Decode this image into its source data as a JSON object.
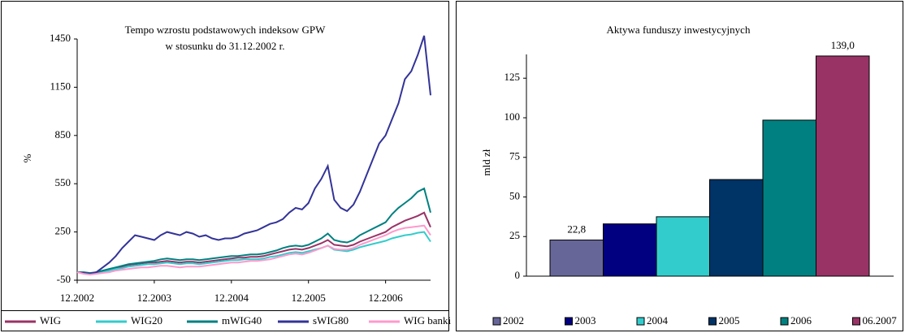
{
  "chart_data": [
    {
      "type": "line",
      "title": "Tempo wzrostu podstawowych indeksow GPW",
      "subtitle": "w stosunku do 31.12.2002 r.",
      "y_label": "%",
      "x": [
        "12.2002",
        "01.2003",
        "02.2003",
        "03.2003",
        "04.2003",
        "05.2003",
        "06.2003",
        "07.2003",
        "08.2003",
        "09.2003",
        "10.2003",
        "11.2003",
        "12.2003",
        "01.2004",
        "02.2004",
        "03.2004",
        "04.2004",
        "05.2004",
        "06.2004",
        "07.2004",
        "08.2004",
        "09.2004",
        "10.2004",
        "11.2004",
        "12.2004",
        "01.2005",
        "02.2005",
        "03.2005",
        "04.2005",
        "05.2005",
        "06.2005",
        "07.2005",
        "08.2005",
        "09.2005",
        "10.2005",
        "11.2005",
        "12.2005",
        "01.2006",
        "02.2006",
        "03.2006",
        "04.2006",
        "05.2006",
        "06.2006",
        "07.2006",
        "08.2006",
        "09.2006",
        "10.2006",
        "11.2006",
        "12.2006",
        "01.2007",
        "02.2007",
        "03.2007",
        "04.2007",
        "05.2007",
        "06.2007",
        "07.2007"
      ],
      "xticks": [
        "12.2002",
        "12.2003",
        "12.2004",
        "12.2005",
        "12.2006"
      ],
      "ylim": [
        -50,
        1450
      ],
      "yticks": [
        -50,
        250,
        550,
        850,
        1150,
        1450
      ],
      "grid": false,
      "series": [
        {
          "name": "WIG",
          "color": "#993366",
          "values": [
            0,
            -5,
            -10,
            -5,
            5,
            15,
            25,
            35,
            45,
            50,
            55,
            60,
            60,
            65,
            70,
            65,
            60,
            65,
            65,
            60,
            65,
            70,
            75,
            80,
            85,
            90,
            90,
            95,
            95,
            100,
            110,
            120,
            130,
            140,
            145,
            140,
            150,
            165,
            180,
            200,
            170,
            165,
            160,
            170,
            190,
            205,
            220,
            235,
            250,
            280,
            300,
            320,
            335,
            350,
            370,
            280
          ]
        },
        {
          "name": "WIG20",
          "color": "#33cccc",
          "values": [
            0,
            -5,
            -10,
            -5,
            0,
            10,
            20,
            25,
            35,
            40,
            45,
            50,
            50,
            55,
            60,
            55,
            50,
            55,
            55,
            50,
            55,
            60,
            65,
            70,
            75,
            75,
            80,
            80,
            80,
            85,
            95,
            100,
            110,
            120,
            125,
            120,
            130,
            140,
            150,
            165,
            140,
            135,
            130,
            140,
            155,
            165,
            175,
            185,
            195,
            210,
            220,
            230,
            235,
            245,
            250,
            190
          ]
        },
        {
          "name": "mWIG40",
          "color": "#008080",
          "values": [
            0,
            0,
            -5,
            0,
            10,
            20,
            30,
            40,
            50,
            55,
            60,
            65,
            70,
            80,
            85,
            80,
            75,
            80,
            80,
            75,
            80,
            85,
            90,
            95,
            100,
            100,
            105,
            110,
            110,
            115,
            125,
            135,
            150,
            160,
            165,
            160,
            170,
            190,
            210,
            240,
            200,
            190,
            185,
            200,
            230,
            250,
            270,
            290,
            310,
            360,
            400,
            430,
            460,
            500,
            520,
            370
          ]
        },
        {
          "name": "sWIG80",
          "color": "#333399",
          "values": [
            0,
            -5,
            -10,
            0,
            30,
            60,
            100,
            150,
            190,
            230,
            220,
            210,
            200,
            230,
            250,
            240,
            230,
            250,
            240,
            220,
            230,
            210,
            200,
            210,
            210,
            220,
            240,
            250,
            260,
            280,
            300,
            310,
            330,
            370,
            400,
            390,
            430,
            520,
            580,
            660,
            450,
            400,
            380,
            420,
            500,
            600,
            700,
            800,
            850,
            950,
            1050,
            1200,
            1250,
            1350,
            1470,
            1100
          ]
        },
        {
          "name": "WIG banki",
          "color": "#ff99cc",
          "values": [
            0,
            -10,
            -15,
            -10,
            -5,
            0,
            10,
            15,
            20,
            25,
            30,
            30,
            35,
            40,
            40,
            35,
            30,
            35,
            35,
            35,
            40,
            45,
            50,
            55,
            60,
            60,
            65,
            70,
            70,
            75,
            80,
            90,
            100,
            110,
            115,
            110,
            120,
            135,
            150,
            165,
            145,
            140,
            140,
            150,
            170,
            185,
            200,
            215,
            230,
            250,
            265,
            275,
            280,
            285,
            290,
            230
          ]
        }
      ]
    },
    {
      "type": "bar",
      "title": "Aktywa funduszy inwestycyjnych",
      "y_label": "mld zł",
      "categories": [
        "2002",
        "2003",
        "2004",
        "2005",
        "2006",
        "06.2007"
      ],
      "values": [
        22.8,
        33,
        37.5,
        61,
        98.5,
        139.0
      ],
      "value_labels": [
        "22,8",
        null,
        null,
        null,
        null,
        "139,0"
      ],
      "colors": [
        "#666699",
        "#000080",
        "#33cccc",
        "#003366",
        "#008080",
        "#993366"
      ],
      "ylim": [
        0,
        140
      ],
      "yticks": [
        0,
        25,
        50,
        75,
        100,
        125
      ],
      "grid": false
    }
  ]
}
